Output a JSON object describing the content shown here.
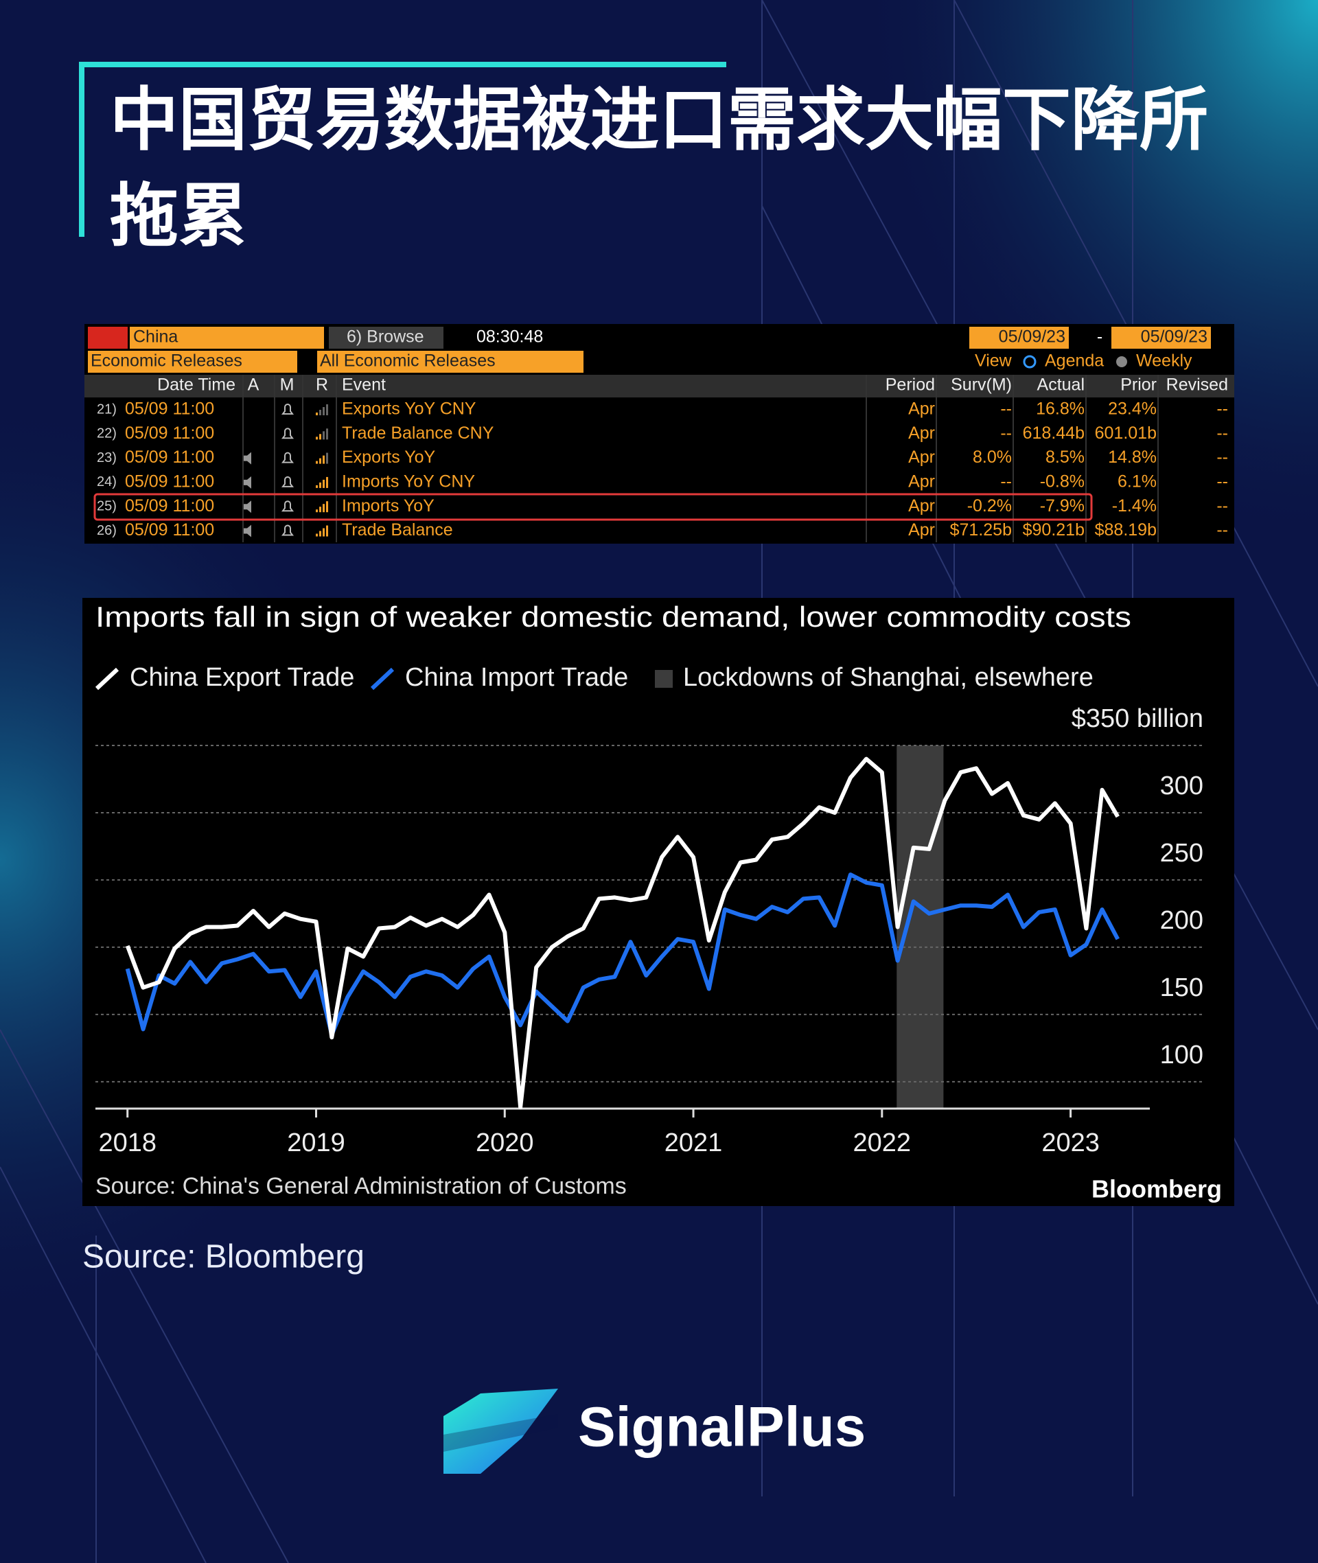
{
  "header": {
    "title": "中国贸易数据被进口需求大幅下降所拖累"
  },
  "terminal": {
    "country": "China",
    "browse": "6) Browse",
    "time": "08:30:48",
    "start_date": "05/09/23",
    "separator": "-",
    "end_date": "05/09/23",
    "menu1": "Economic Releases",
    "menu2": "All Economic Releases",
    "view": "View",
    "agenda": "Agenda",
    "weekly": "Weekly",
    "columns": [
      "Date Time",
      "A",
      "M",
      "R",
      "Event",
      "Period",
      "Surv(M)",
      "Actual",
      "Prior",
      "Revised"
    ],
    "rows": [
      [
        "21)",
        "05/09 11:00",
        "Exports YoY CNY",
        "Apr",
        "--",
        "16.8%",
        "23.4%",
        "--"
      ],
      [
        "22)",
        "05/09 11:00",
        "Trade Balance CNY",
        "Apr",
        "--",
        "618.44b",
        "601.01b",
        "--"
      ],
      [
        "23)",
        "05/09 11:00",
        "Exports YoY",
        "Apr",
        "8.0%",
        "8.5%",
        "14.8%",
        "--"
      ],
      [
        "24)",
        "05/09 11:00",
        "Imports YoY CNY",
        "Apr",
        "--",
        "-0.8%",
        "6.1%",
        "--"
      ],
      [
        "25)",
        "05/09 11:00",
        "Imports YoY",
        "Apr",
        "-0.2%",
        "-7.9%",
        "-1.4%",
        "--"
      ],
      [
        "26)",
        "05/09 11:00",
        "Trade Balance",
        "Apr",
        "$71.25b",
        "$90.21b",
        "$88.19b",
        "--"
      ]
    ]
  },
  "chart_data": {
    "type": "line",
    "title": "Imports fall in sign of weaker domestic demand, lower commodity costs",
    "x": [
      2018,
      2018.083,
      2018.167,
      2018.25,
      2018.333,
      2018.417,
      2018.5,
      2018.583,
      2018.667,
      2018.75,
      2018.833,
      2018.917,
      2019,
      2019.083,
      2019.167,
      2019.25,
      2019.333,
      2019.417,
      2019.5,
      2019.583,
      2019.667,
      2019.75,
      2019.833,
      2019.917,
      2020,
      2020.083,
      2020.167,
      2020.25,
      2020.333,
      2020.417,
      2020.5,
      2020.583,
      2020.667,
      2020.75,
      2020.833,
      2020.917,
      2021,
      2021.083,
      2021.167,
      2021.25,
      2021.333,
      2021.417,
      2021.5,
      2021.583,
      2021.667,
      2021.75,
      2021.833,
      2021.917,
      2022,
      2022.083,
      2022.167,
      2022.25,
      2022.333,
      2022.417,
      2022.5,
      2022.583,
      2022.667,
      2022.75,
      2022.833,
      2022.917,
      2023,
      2023.083,
      2023.167,
      2023.25
    ],
    "series": [
      {
        "name": "China Export Trade",
        "color": "#ffffff",
        "values": [
          201,
          170,
          174,
          199,
          210,
          215,
          215,
          216,
          227,
          215,
          225,
          221,
          219,
          133,
          199,
          193,
          214,
          215,
          222,
          216,
          221,
          215,
          224,
          239,
          211,
          81,
          185,
          200,
          208,
          214,
          236,
          237,
          235,
          237,
          267,
          282,
          267,
          205,
          241,
          263,
          265,
          280,
          282,
          292,
          304,
          300,
          326,
          340,
          330,
          215,
          274,
          273,
          309,
          330,
          333,
          314,
          322,
          298,
          295,
          307,
          292,
          214,
          317,
          297
        ]
      },
      {
        "name": "China Import Trade",
        "color": "#1f6ff0",
        "values": [
          184,
          139,
          179,
          173,
          189,
          174,
          188,
          191,
          195,
          182,
          183,
          163,
          182,
          135,
          163,
          182,
          174,
          163,
          178,
          182,
          179,
          170,
          184,
          193,
          163,
          142,
          167,
          156,
          145,
          170,
          176,
          178,
          204,
          179,
          193,
          206,
          204,
          169,
          228,
          224,
          221,
          230,
          226,
          236,
          237,
          216,
          254,
          248,
          246,
          190,
          234,
          225,
          228,
          231,
          231,
          230,
          239,
          215,
          226,
          228,
          194,
          202,
          228,
          206
        ]
      }
    ],
    "shade": {
      "name": "Lockdowns of Shanghai, elsewhere",
      "x": [
        2022.078,
        2022.326
      ],
      "color": "#3c3c3c"
    },
    "xlim": [
      2017.83,
      2023.42
    ],
    "xticks": [
      2018,
      2019,
      2020,
      2021,
      2022,
      2023
    ],
    "ylim": [
      80,
      350
    ],
    "yticks": [
      100,
      150,
      200,
      250,
      300,
      {
        "value": 350,
        "label": "$350 billion"
      }
    ],
    "grid": true,
    "y_axis_side": "right",
    "source": "Source: China's General Administration of Customs",
    "brand": "Bloomberg"
  },
  "footer": {
    "source": "Source: Bloomberg",
    "logo": "SignalPlus"
  }
}
